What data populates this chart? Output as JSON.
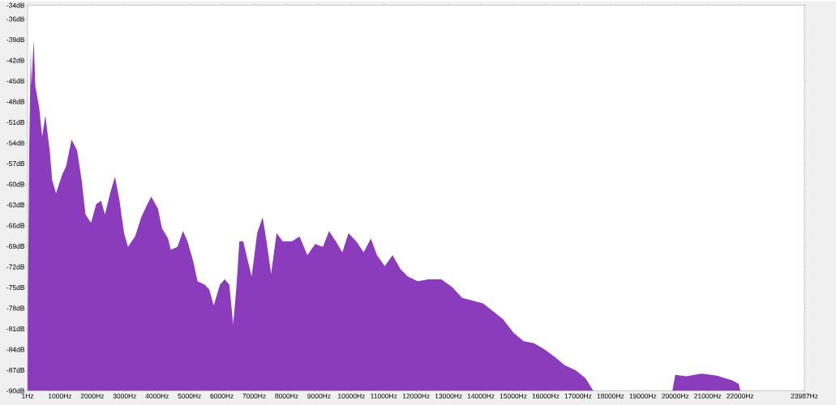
{
  "chart_data": {
    "type": "area",
    "color": "#8b3cbd",
    "x": [
      1,
      10,
      50,
      100,
      120,
      190,
      240,
      360,
      450,
      550,
      690,
      760,
      880,
      1070,
      1190,
      1360,
      1530,
      1670,
      1790,
      1960,
      2120,
      2270,
      2390,
      2550,
      2700,
      2840,
      2980,
      3100,
      3320,
      3510,
      3700,
      3820,
      4030,
      4150,
      4340,
      4420,
      4630,
      4800,
      4940,
      5110,
      5250,
      5470,
      5610,
      5750,
      5940,
      6090,
      6230,
      6350,
      6450,
      6540,
      6660,
      6800,
      6920,
      7090,
      7260,
      7380,
      7520,
      7690,
      7880,
      8160,
      8400,
      8640,
      8880,
      9120,
      9310,
      9520,
      9720,
      9910,
      10150,
      10380,
      10600,
      10790,
      11030,
      11270,
      11510,
      11740,
      12050,
      12390,
      12770,
      13100,
      13420,
      13730,
      14060,
      14390,
      14680,
      15010,
      15320,
      15640,
      15970,
      16280,
      16590,
      16920,
      17230,
      17470,
      17590,
      19910,
      20000,
      20340,
      20810,
      21290,
      21770,
      21960,
      22010,
      23800
    ],
    "values": [
      -90,
      -76.5,
      -55.4,
      -40.2,
      -45.7,
      -39.0,
      -45.7,
      -48.9,
      -53.1,
      -50.0,
      -55.4,
      -59.4,
      -61.3,
      -58.6,
      -57.4,
      -53.5,
      -55.1,
      -59.4,
      -64.4,
      -65.6,
      -62.9,
      -62.4,
      -64.4,
      -61.3,
      -58.9,
      -62.4,
      -67.1,
      -69.1,
      -67.6,
      -64.8,
      -62.9,
      -61.8,
      -63.6,
      -66.4,
      -67.9,
      -69.5,
      -69.1,
      -66.8,
      -68.3,
      -71.1,
      -74.1,
      -74.6,
      -75.3,
      -77.6,
      -74.6,
      -73.8,
      -74.6,
      -80.4,
      -74.9,
      -68.3,
      -68.3,
      -71.1,
      -73.4,
      -67.1,
      -64.8,
      -68.3,
      -73.0,
      -67.1,
      -68.3,
      -68.3,
      -67.6,
      -70.3,
      -68.7,
      -69.1,
      -66.8,
      -68.3,
      -69.9,
      -67.1,
      -68.3,
      -69.9,
      -67.9,
      -70.3,
      -71.9,
      -70.3,
      -72.3,
      -73.4,
      -74.1,
      -73.8,
      -73.8,
      -74.9,
      -76.5,
      -76.9,
      -77.3,
      -78.5,
      -79.6,
      -81.6,
      -82.8,
      -83.1,
      -84.0,
      -85.1,
      -86.3,
      -87.0,
      -88.2,
      -90,
      -90,
      -90,
      -87.7,
      -87.9,
      -87.5,
      -87.8,
      -88.5,
      -89,
      -90,
      -90
    ],
    "xlim": [
      1,
      23987
    ],
    "ylim": [
      -90,
      -34
    ],
    "xticks": [
      {
        "value": 1,
        "label": "1Hz"
      },
      {
        "value": 1000,
        "label": "1000Hz"
      },
      {
        "value": 2000,
        "label": "2000Hz"
      },
      {
        "value": 3000,
        "label": "3000Hz"
      },
      {
        "value": 4000,
        "label": "4000Hz"
      },
      {
        "value": 5000,
        "label": "5000Hz"
      },
      {
        "value": 6000,
        "label": "6000Hz"
      },
      {
        "value": 7000,
        "label": "7000Hz"
      },
      {
        "value": 8000,
        "label": "8000Hz"
      },
      {
        "value": 9000,
        "label": "9000Hz"
      },
      {
        "value": 10000,
        "label": "10000Hz"
      },
      {
        "value": 11000,
        "label": "11000Hz"
      },
      {
        "value": 12000,
        "label": "12000Hz"
      },
      {
        "value": 13000,
        "label": "13000Hz"
      },
      {
        "value": 14000,
        "label": "14000Hz"
      },
      {
        "value": 15000,
        "label": "15000Hz"
      },
      {
        "value": 16000,
        "label": "16000Hz"
      },
      {
        "value": 17000,
        "label": "17000Hz"
      },
      {
        "value": 18000,
        "label": "18000Hz"
      },
      {
        "value": 19000,
        "label": "19000Hz"
      },
      {
        "value": 20000,
        "label": "20000Hz"
      },
      {
        "value": 21000,
        "label": "21000Hz"
      },
      {
        "value": 22000,
        "label": "22000Hz"
      },
      {
        "value": 23987,
        "label": "23987Hz"
      }
    ],
    "yticks": [
      {
        "value": -34,
        "label": "-34dB"
      },
      {
        "value": -36,
        "label": "-36dB"
      },
      {
        "value": -39,
        "label": "-39dB"
      },
      {
        "value": -42,
        "label": "-42dB"
      },
      {
        "value": -45,
        "label": "-45dB"
      },
      {
        "value": -48,
        "label": "-48dB"
      },
      {
        "value": -51,
        "label": "-51dB"
      },
      {
        "value": -54,
        "label": "-54dB"
      },
      {
        "value": -57,
        "label": "-57dB"
      },
      {
        "value": -60,
        "label": "-60dB"
      },
      {
        "value": -63,
        "label": "-63dB"
      },
      {
        "value": -66,
        "label": "-66dB"
      },
      {
        "value": -69,
        "label": "-69dB"
      },
      {
        "value": -72,
        "label": "-72dB"
      },
      {
        "value": -75,
        "label": "-75dB"
      },
      {
        "value": -78,
        "label": "-78dB"
      },
      {
        "value": -81,
        "label": "-81dB"
      },
      {
        "value": -84,
        "label": "-84dB"
      },
      {
        "value": -87,
        "label": "-87dB"
      },
      {
        "value": -90,
        "label": "-90dB"
      }
    ]
  }
}
